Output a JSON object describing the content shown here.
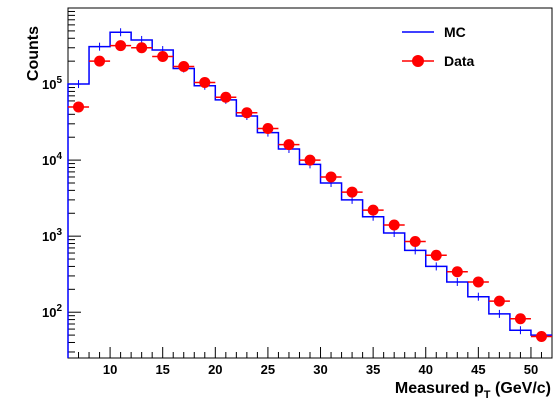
{
  "chart_data": {
    "type": "histogram",
    "xlabel_main": "Measured p",
    "xlabel_sub": "T",
    "xlabel_unit": "(GeV/c)",
    "ylabel": "Counts",
    "xlim": [
      6,
      52
    ],
    "ylim": [
      25,
      1000000
    ],
    "yscale": "log",
    "grid": false,
    "legend_position": "top-right",
    "x_ticks": [
      10,
      15,
      20,
      25,
      30,
      35,
      40,
      45,
      50
    ],
    "y_ticks": [
      {
        "value": 100,
        "base": "10",
        "exp": "2"
      },
      {
        "value": 1000,
        "base": "10",
        "exp": "3"
      },
      {
        "value": 10000,
        "base": "10",
        "exp": "4"
      },
      {
        "value": 100000,
        "base": "10",
        "exp": "5"
      }
    ],
    "series": [
      {
        "name": "MC",
        "color": "#0000ff",
        "style": "step",
        "bin_edges": [
          6,
          8,
          10,
          12,
          14,
          16,
          18,
          20,
          22,
          24,
          26,
          28,
          30,
          32,
          34,
          36,
          38,
          40,
          42,
          44,
          46,
          48,
          50,
          52
        ],
        "values": [
          100000,
          310000,
          480000,
          380000,
          280000,
          160000,
          95000,
          62000,
          38000,
          23000,
          14000,
          8800,
          5000,
          3000,
          1800,
          1100,
          650,
          400,
          250,
          160,
          95,
          58,
          50
        ]
      },
      {
        "name": "Data",
        "color": "#ff0000",
        "style": "markers",
        "x": [
          7,
          9,
          11,
          13,
          15,
          17,
          19,
          21,
          23,
          25,
          27,
          29,
          31,
          33,
          35,
          37,
          39,
          41,
          43,
          45,
          47,
          49,
          51
        ],
        "x_err": 1,
        "values": [
          50000,
          200000,
          320000,
          300000,
          230000,
          170000,
          105000,
          67000,
          42000,
          26000,
          16000,
          10000,
          6000,
          3800,
          2200,
          1400,
          850,
          560,
          340,
          250,
          140,
          82,
          48
        ]
      }
    ]
  }
}
